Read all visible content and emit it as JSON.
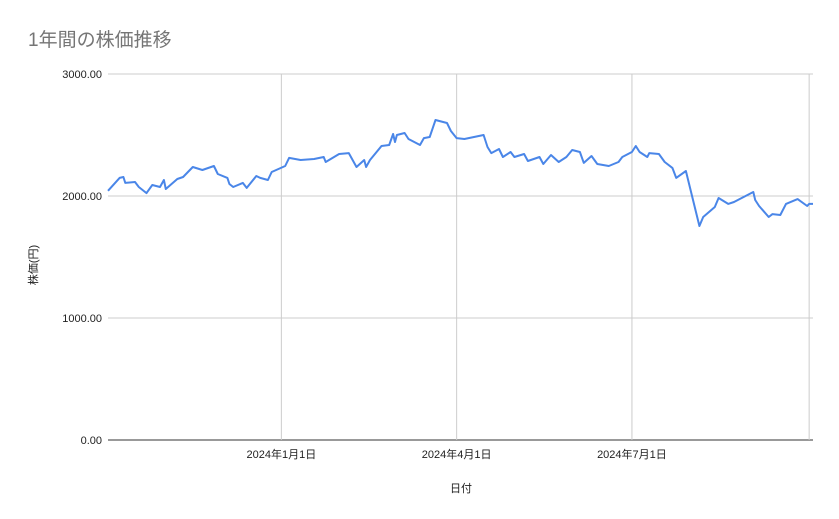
{
  "chart_data": {
    "type": "line",
    "title": "1年間の株価推移",
    "xlabel": "日付",
    "ylabel": "株価(円)",
    "ylim": [
      0,
      3000
    ],
    "xlim": [
      "2023-10-03",
      "2024-10-03"
    ],
    "yticks": [
      "0.00",
      "1000.00",
      "2000.00",
      "3000.00"
    ],
    "xticks": [
      {
        "date": "2024-01-01",
        "label": "2024年1月1日"
      },
      {
        "date": "2024-04-01",
        "label": "2024年4月1日"
      },
      {
        "date": "2024-07-01",
        "label": "2024年7月1日"
      },
      {
        "date": "2024-10-01",
        "label": ""
      }
    ],
    "grid": true,
    "line_color": "#4a86e8",
    "points": [
      [
        "2023-10-03",
        2043
      ],
      [
        "2023-10-09",
        2148
      ],
      [
        "2023-10-11",
        2156
      ],
      [
        "2023-10-12",
        2107
      ],
      [
        "2023-10-17",
        2115
      ],
      [
        "2023-10-19",
        2074
      ],
      [
        "2023-10-23",
        2024
      ],
      [
        "2023-10-26",
        2090
      ],
      [
        "2023-10-30",
        2074
      ],
      [
        "2023-11-01",
        2131
      ],
      [
        "2023-11-02",
        2057
      ],
      [
        "2023-11-08",
        2139
      ],
      [
        "2023-11-11",
        2156
      ],
      [
        "2023-11-16",
        2238
      ],
      [
        "2023-11-21",
        2213
      ],
      [
        "2023-11-27",
        2246
      ],
      [
        "2023-11-29",
        2180
      ],
      [
        "2023-12-04",
        2148
      ],
      [
        "2023-12-05",
        2098
      ],
      [
        "2023-12-07",
        2074
      ],
      [
        "2023-12-12",
        2107
      ],
      [
        "2023-12-14",
        2066
      ],
      [
        "2023-12-19",
        2164
      ],
      [
        "2023-12-21",
        2148
      ],
      [
        "2023-12-25",
        2131
      ],
      [
        "2023-12-27",
        2197
      ],
      [
        "2024-01-03",
        2246
      ],
      [
        "2024-01-05",
        2312
      ],
      [
        "2024-01-11",
        2295
      ],
      [
        "2024-01-18",
        2303
      ],
      [
        "2024-01-23",
        2320
      ],
      [
        "2024-01-24",
        2279
      ],
      [
        "2024-01-31",
        2344
      ],
      [
        "2024-02-05",
        2352
      ],
      [
        "2024-02-09",
        2238
      ],
      [
        "2024-02-13",
        2295
      ],
      [
        "2024-02-14",
        2238
      ],
      [
        "2024-02-16",
        2295
      ],
      [
        "2024-02-22",
        2410
      ],
      [
        "2024-02-26",
        2418
      ],
      [
        "2024-02-28",
        2508
      ],
      [
        "2024-02-29",
        2443
      ],
      [
        "2024-03-01",
        2500
      ],
      [
        "2024-03-05",
        2516
      ],
      [
        "2024-03-07",
        2467
      ],
      [
        "2024-03-13",
        2418
      ],
      [
        "2024-03-15",
        2475
      ],
      [
        "2024-03-18",
        2484
      ],
      [
        "2024-03-21",
        2623
      ],
      [
        "2024-03-27",
        2598
      ],
      [
        "2024-03-29",
        2533
      ],
      [
        "2024-04-01",
        2475
      ],
      [
        "2024-04-05",
        2467
      ],
      [
        "2024-04-15",
        2500
      ],
      [
        "2024-04-17",
        2402
      ],
      [
        "2024-04-19",
        2352
      ],
      [
        "2024-04-23",
        2385
      ],
      [
        "2024-04-25",
        2320
      ],
      [
        "2024-04-29",
        2361
      ],
      [
        "2024-05-01",
        2320
      ],
      [
        "2024-05-06",
        2344
      ],
      [
        "2024-05-08",
        2287
      ],
      [
        "2024-05-14",
        2320
      ],
      [
        "2024-05-16",
        2262
      ],
      [
        "2024-05-20",
        2336
      ],
      [
        "2024-05-24",
        2279
      ],
      [
        "2024-05-28",
        2320
      ],
      [
        "2024-05-31",
        2377
      ],
      [
        "2024-06-04",
        2361
      ],
      [
        "2024-06-06",
        2271
      ],
      [
        "2024-06-10",
        2328
      ],
      [
        "2024-06-13",
        2262
      ],
      [
        "2024-06-19",
        2246
      ],
      [
        "2024-06-24",
        2279
      ],
      [
        "2024-06-26",
        2320
      ],
      [
        "2024-07-01",
        2361
      ],
      [
        "2024-07-03",
        2410
      ],
      [
        "2024-07-05",
        2361
      ],
      [
        "2024-07-09",
        2320
      ],
      [
        "2024-07-10",
        2352
      ],
      [
        "2024-07-15",
        2344
      ],
      [
        "2024-07-18",
        2279
      ],
      [
        "2024-07-22",
        2230
      ],
      [
        "2024-07-24",
        2148
      ],
      [
        "2024-07-29",
        2205
      ],
      [
        "2024-08-05",
        1754
      ],
      [
        "2024-08-07",
        1828
      ],
      [
        "2024-08-13",
        1910
      ],
      [
        "2024-08-15",
        1984
      ],
      [
        "2024-08-20",
        1935
      ],
      [
        "2024-08-23",
        1951
      ],
      [
        "2024-08-27",
        1984
      ],
      [
        "2024-09-02",
        2033
      ],
      [
        "2024-09-03",
        1967
      ],
      [
        "2024-09-05",
        1918
      ],
      [
        "2024-09-10",
        1828
      ],
      [
        "2024-09-12",
        1852
      ],
      [
        "2024-09-16",
        1844
      ],
      [
        "2024-09-19",
        1935
      ],
      [
        "2024-09-25",
        1975
      ],
      [
        "2024-09-30",
        1918
      ],
      [
        "2024-10-01",
        1935
      ],
      [
        "2024-10-03",
        1935
      ]
    ]
  }
}
